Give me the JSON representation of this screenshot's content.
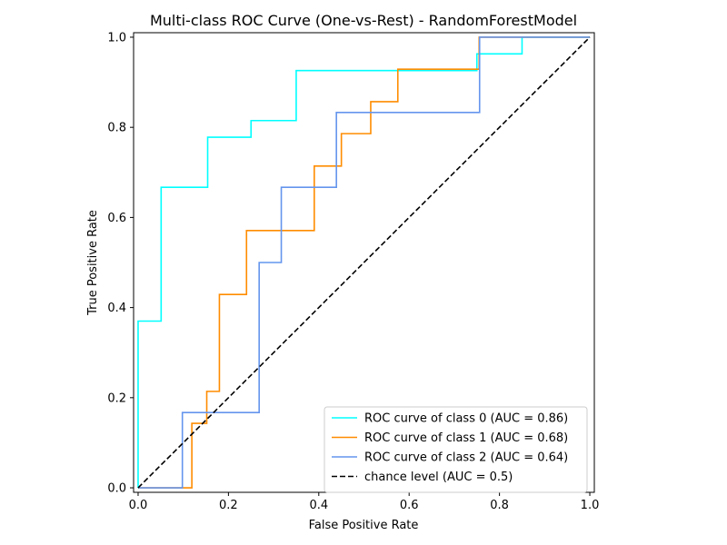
{
  "chart_data": {
    "type": "line",
    "title": "Multi-class ROC Curve (One-vs-Rest) - RandomForestModel",
    "xlabel": "False Positive Rate",
    "ylabel": "True Positive Rate",
    "xlim": [
      0.0,
      1.0
    ],
    "ylim": [
      0.0,
      1.0
    ],
    "x_ticks": [
      "0.0",
      "0.2",
      "0.4",
      "0.6",
      "0.8",
      "1.0"
    ],
    "y_ticks": [
      "0.0",
      "0.2",
      "0.4",
      "0.6",
      "0.8",
      "1.0"
    ],
    "grid": false,
    "legend_position": "bottom-right",
    "series": [
      {
        "name": "ROC curve of class 0 (AUC = 0.86)",
        "color": "#00ffff",
        "style": "solid",
        "x": [
          0.0,
          0.0,
          0.0,
          0.051,
          0.051,
          0.154,
          0.154,
          0.25,
          0.25,
          0.35,
          0.35,
          0.75,
          0.75,
          0.85,
          0.85,
          1.0
        ],
        "y": [
          0.0,
          0.037,
          0.37,
          0.37,
          0.667,
          0.667,
          0.778,
          0.778,
          0.815,
          0.815,
          0.926,
          0.926,
          0.963,
          0.963,
          1.0,
          1.0
        ]
      },
      {
        "name": "ROC curve of class 1 (AUC = 0.68)",
        "color": "#ff8c00",
        "style": "solid",
        "x": [
          0.0,
          0.119,
          0.119,
          0.152,
          0.152,
          0.18,
          0.18,
          0.24,
          0.24,
          0.39,
          0.39,
          0.45,
          0.45,
          0.515,
          0.515,
          0.575,
          0.575,
          0.755,
          0.755,
          1.0
        ],
        "y": [
          0.0,
          0.0,
          0.143,
          0.143,
          0.214,
          0.214,
          0.429,
          0.429,
          0.571,
          0.571,
          0.714,
          0.714,
          0.786,
          0.786,
          0.857,
          0.857,
          0.929,
          0.929,
          1.0,
          1.0
        ]
      },
      {
        "name": "ROC curve of class 2 (AUC = 0.64)",
        "color": "#6495ed",
        "style": "solid",
        "x": [
          0.0,
          0.098,
          0.098,
          0.268,
          0.268,
          0.317,
          0.317,
          0.439,
          0.439,
          0.756,
          0.756,
          1.0
        ],
        "y": [
          0.0,
          0.0,
          0.167,
          0.167,
          0.5,
          0.5,
          0.667,
          0.667,
          0.833,
          0.833,
          1.0,
          1.0
        ]
      },
      {
        "name": "chance level (AUC = 0.5)",
        "color": "#000000",
        "style": "dashed",
        "x": [
          0.0,
          1.0
        ],
        "y": [
          0.0,
          1.0
        ]
      }
    ]
  }
}
